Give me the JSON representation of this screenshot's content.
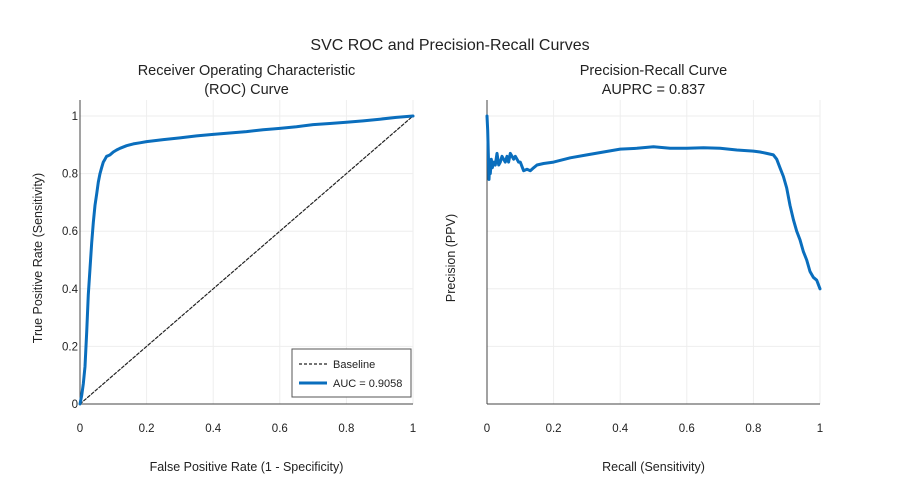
{
  "figure_title": "SVC ROC and Precision-Recall Curves",
  "chart_data": [
    {
      "type": "line",
      "title": "Receiver Operating Characteristic (ROC) Curve",
      "title_lines": [
        "Receiver Operating Characteristic",
        "(ROC) Curve"
      ],
      "xlabel": "False Positive Rate (1 - Specificity)",
      "ylabel": "True Positive Rate (Sensitivity)",
      "xlim": [
        0,
        1
      ],
      "ylim": [
        0,
        1
      ],
      "xticks": [
        0,
        0.2,
        0.4,
        0.6,
        0.8,
        1
      ],
      "xtick_labels": [
        "0",
        "0.2",
        "0.4",
        "0.6",
        "0.8",
        "1"
      ],
      "yticks": [
        0,
        0.2,
        0.4,
        0.6,
        0.8,
        1
      ],
      "ytick_labels": [
        "0",
        "0.2",
        "0.4",
        "0.6",
        "0.8",
        "1"
      ],
      "grid": true,
      "legend": {
        "position": "bottom-right",
        "entries": [
          "Baseline",
          "AUC = 0.9058"
        ]
      },
      "series": [
        {
          "name": "Baseline",
          "style": "dashed",
          "color": "#222222",
          "x": [
            0,
            1
          ],
          "y": [
            0,
            1
          ]
        },
        {
          "name": "AUC = 0.9058",
          "style": "solid",
          "color": "#0a6ebd",
          "x": [
            0,
            0.005,
            0.01,
            0.015,
            0.02,
            0.025,
            0.03,
            0.035,
            0.04,
            0.045,
            0.05,
            0.055,
            0.06,
            0.065,
            0.07,
            0.075,
            0.08,
            0.085,
            0.09,
            0.1,
            0.11,
            0.12,
            0.14,
            0.16,
            0.18,
            0.2,
            0.25,
            0.3,
            0.35,
            0.4,
            0.45,
            0.5,
            0.55,
            0.6,
            0.65,
            0.7,
            0.75,
            0.8,
            0.85,
            0.9,
            0.95,
            1
          ],
          "y": [
            0,
            0.03,
            0.07,
            0.13,
            0.25,
            0.38,
            0.47,
            0.56,
            0.63,
            0.69,
            0.73,
            0.77,
            0.8,
            0.82,
            0.84,
            0.85,
            0.86,
            0.862,
            0.865,
            0.875,
            0.882,
            0.888,
            0.897,
            0.903,
            0.907,
            0.911,
            0.918,
            0.924,
            0.931,
            0.936,
            0.941,
            0.946,
            0.952,
            0.957,
            0.963,
            0.97,
            0.974,
            0.978,
            0.983,
            0.989,
            0.995,
            1
          ]
        }
      ]
    },
    {
      "type": "line",
      "title": "Precision-Recall Curve AUPRC = 0.837",
      "title_lines": [
        "Precision-Recall Curve",
        "AUPRC = 0.837"
      ],
      "xlabel": "Recall (Sensitivity)",
      "ylabel": "Precision (PPV)",
      "xlim": [
        0,
        1
      ],
      "ylim": [
        0,
        1
      ],
      "xticks": [
        0,
        0.2,
        0.4,
        0.6,
        0.8,
        1
      ],
      "xtick_labels": [
        "0",
        "0.2",
        "0.4",
        "0.6",
        "0.8",
        "1"
      ],
      "yticks": [
        0,
        0.2,
        0.4,
        0.6,
        0.8,
        1
      ],
      "ytick_labels": [],
      "grid": true,
      "series": [
        {
          "color": "#0a6ebd",
          "style": "solid",
          "x": [
            0,
            0.002,
            0.004,
            0.006,
            0.008,
            0.01,
            0.013,
            0.016,
            0.02,
            0.025,
            0.03,
            0.035,
            0.04,
            0.045,
            0.05,
            0.055,
            0.06,
            0.065,
            0.07,
            0.075,
            0.08,
            0.085,
            0.09,
            0.095,
            0.1,
            0.11,
            0.12,
            0.13,
            0.14,
            0.15,
            0.17,
            0.2,
            0.25,
            0.3,
            0.35,
            0.4,
            0.45,
            0.5,
            0.55,
            0.6,
            0.65,
            0.7,
            0.75,
            0.8,
            0.82,
            0.84,
            0.86,
            0.87,
            0.88,
            0.89,
            0.9,
            0.91,
            0.92,
            0.93,
            0.94,
            0.95,
            0.96,
            0.97,
            0.98,
            0.99,
            1
          ],
          "y": [
            1,
            0.95,
            0.87,
            0.78,
            0.83,
            0.8,
            0.85,
            0.82,
            0.84,
            0.83,
            0.87,
            0.83,
            0.84,
            0.86,
            0.85,
            0.84,
            0.86,
            0.84,
            0.87,
            0.86,
            0.85,
            0.86,
            0.85,
            0.84,
            0.84,
            0.81,
            0.815,
            0.81,
            0.82,
            0.83,
            0.835,
            0.84,
            0.855,
            0.865,
            0.875,
            0.885,
            0.888,
            0.893,
            0.888,
            0.888,
            0.89,
            0.888,
            0.882,
            0.878,
            0.875,
            0.87,
            0.865,
            0.85,
            0.82,
            0.79,
            0.75,
            0.69,
            0.64,
            0.6,
            0.57,
            0.53,
            0.5,
            0.46,
            0.44,
            0.43,
            0.4
          ]
        }
      ]
    }
  ]
}
